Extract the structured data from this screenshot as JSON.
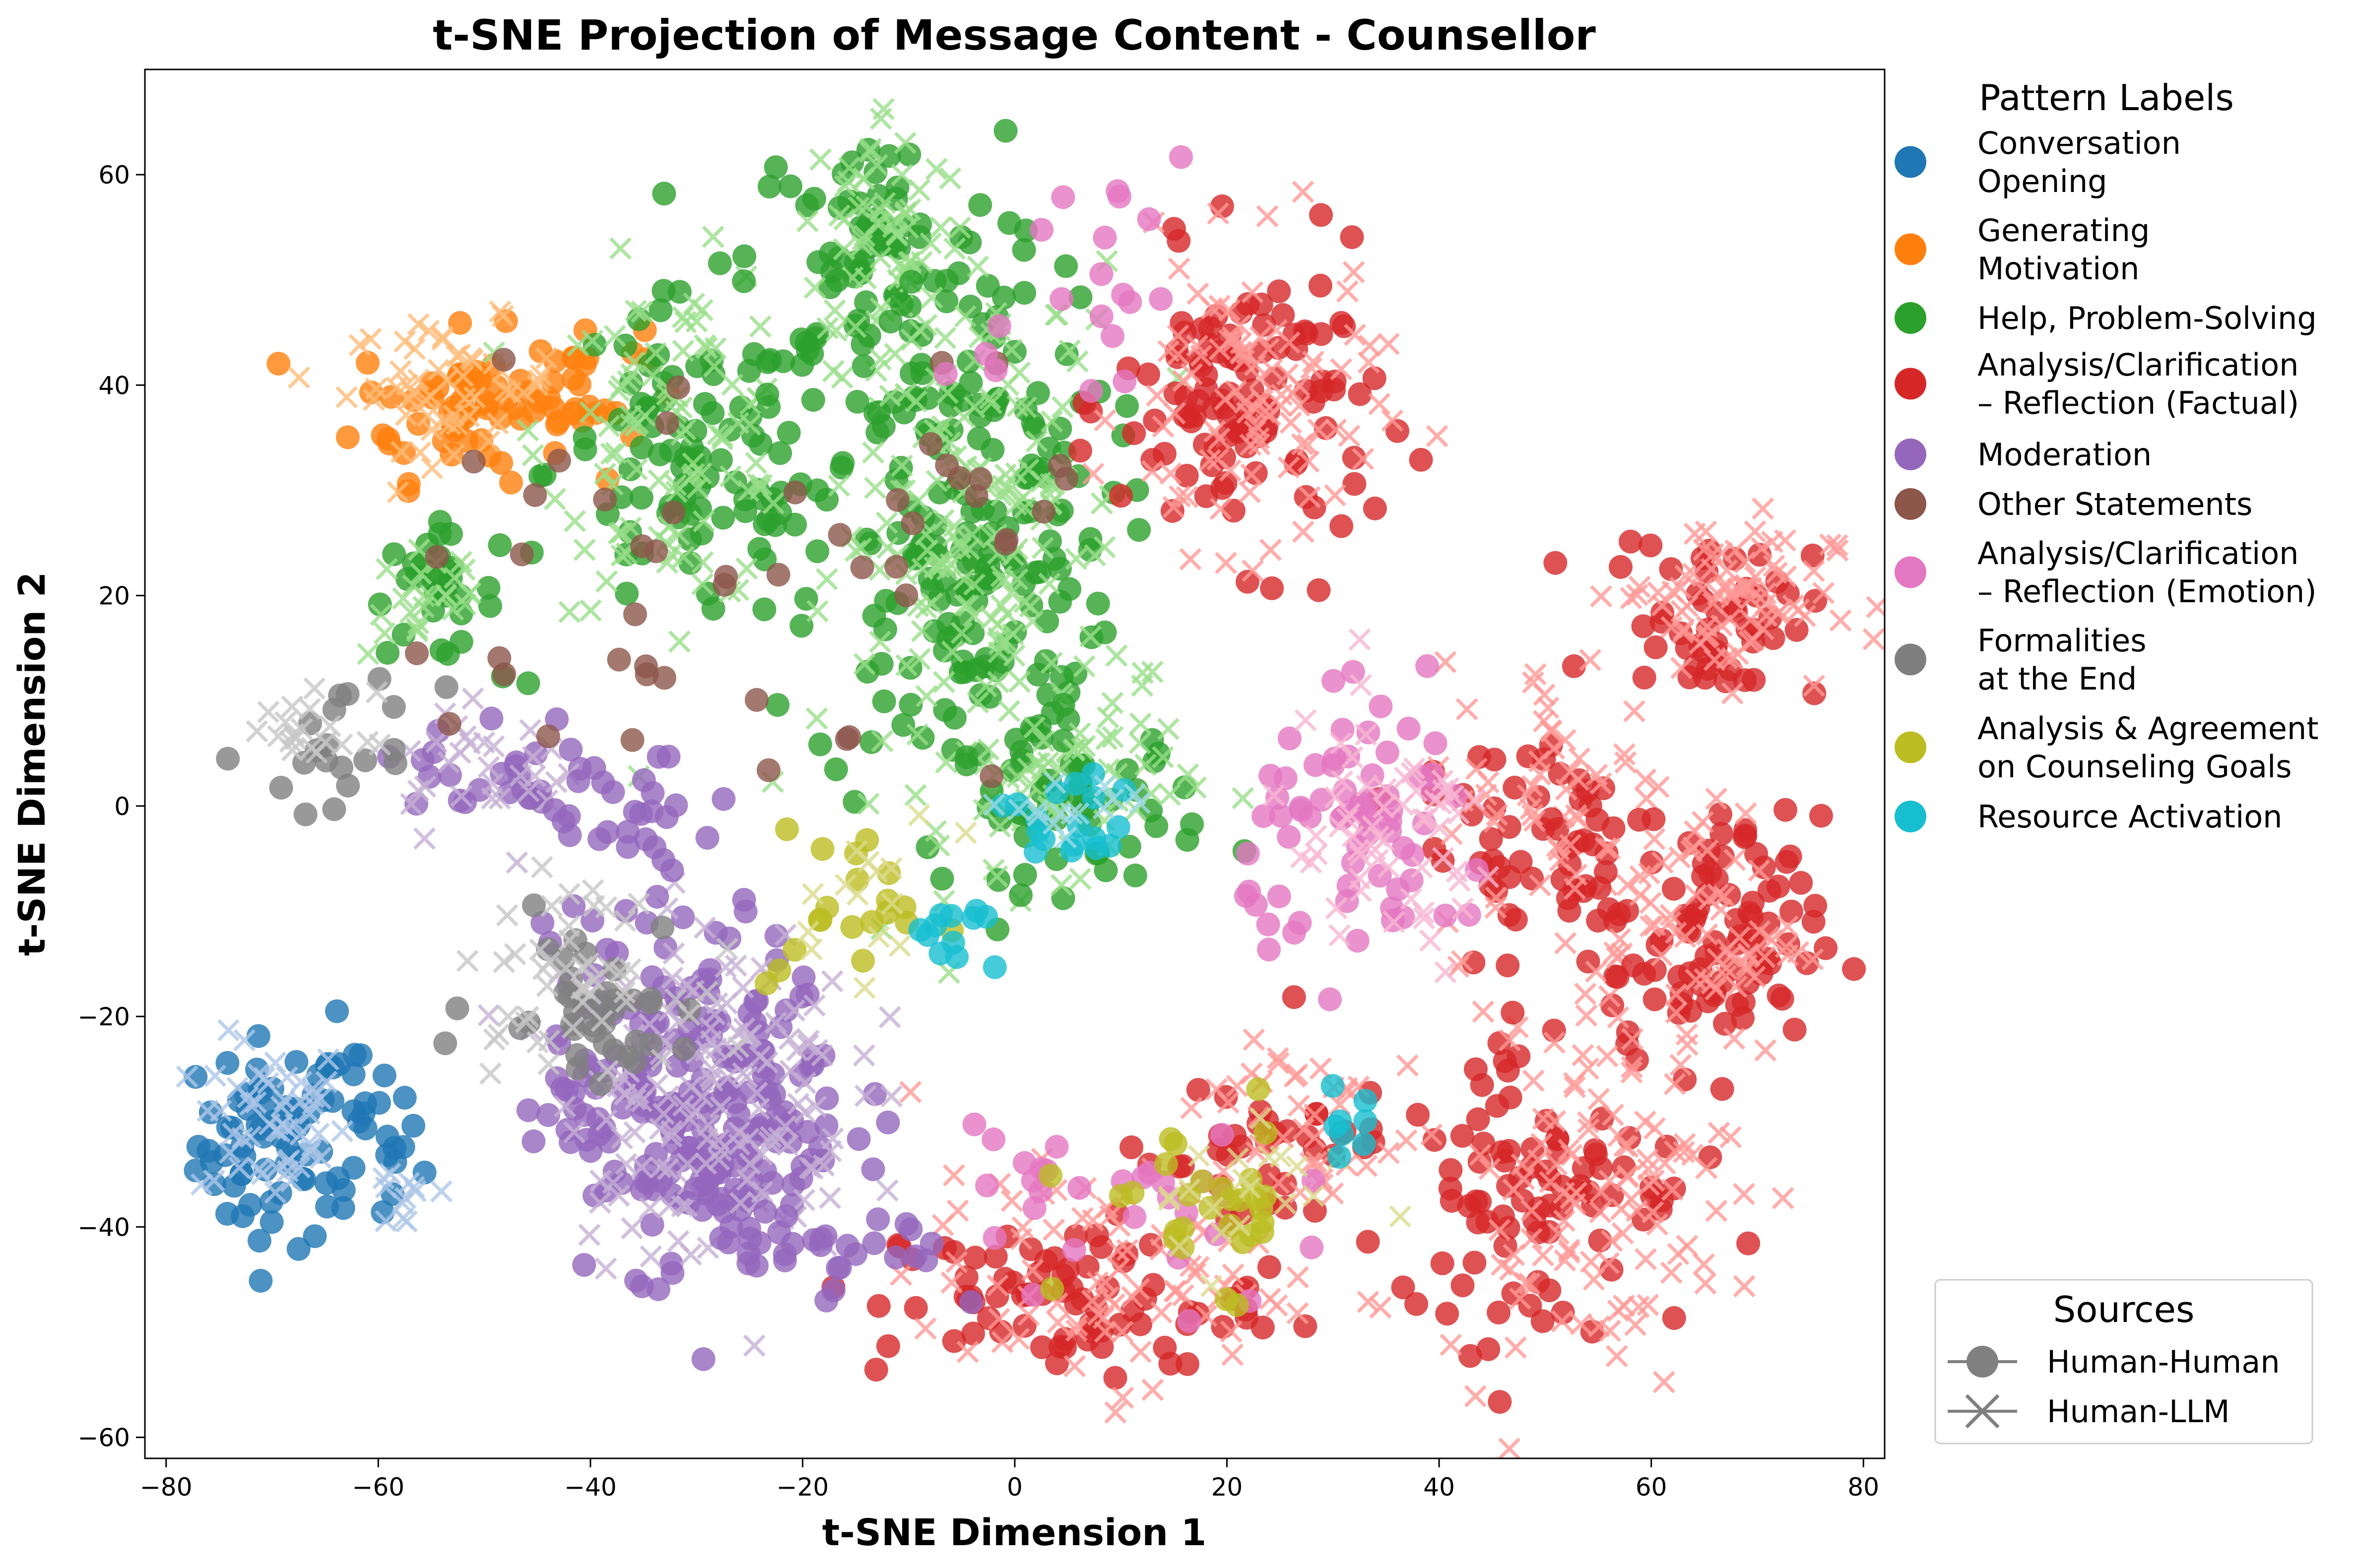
{
  "chart_data": {
    "type": "scatter",
    "title": "t-SNE Projection of Message Content - Counsellor",
    "xlabel": "t-SNE Dimension 1",
    "ylabel": "t-SNE Dimension 2",
    "xlim": [
      -82,
      82
    ],
    "ylim": [
      -62,
      70
    ],
    "xticks": [
      -80,
      -60,
      -40,
      -20,
      0,
      20,
      40,
      60,
      80
    ],
    "yticks": [
      -60,
      -40,
      -20,
      0,
      20,
      40,
      60
    ],
    "grid": false,
    "legend_labels": {
      "title": "Pattern Labels",
      "placement": "outside-right-top",
      "items": [
        {
          "label": [
            "Conversation",
            "Opening"
          ],
          "color": "#1f77b4"
        },
        {
          "label": [
            "Generating",
            "Motivation"
          ],
          "color": "#ff7f0e"
        },
        {
          "label": [
            "Help, Problem-Solving"
          ],
          "color": "#2ca02c"
        },
        {
          "label": [
            "Analysis/Clarification",
            "– Reflection (Factual)"
          ],
          "color": "#d62728"
        },
        {
          "label": [
            "Moderation"
          ],
          "color": "#9467bd"
        },
        {
          "label": [
            "Other Statements"
          ],
          "color": "#8c564b"
        },
        {
          "label": [
            "Analysis/Clarification",
            "– Reflection (Emotion)"
          ],
          "color": "#e377c2"
        },
        {
          "label": [
            "Formalities",
            "at the End"
          ],
          "color": "#7f7f7f"
        },
        {
          "label": [
            "Analysis & Agreement",
            "on Counseling Goals"
          ],
          "color": "#bcbd22"
        },
        {
          "label": [
            "Resource Activation"
          ],
          "color": "#17becf"
        }
      ]
    },
    "legend_sources": {
      "title": "Sources",
      "placement": "outside-right-bottom",
      "items": [
        {
          "label": "Human-Human",
          "marker": "circle",
          "color": "#808080"
        },
        {
          "label": "Human-LLM",
          "marker": "x",
          "color": "#808080"
        }
      ]
    },
    "clusters": [
      {
        "category": 0,
        "source": "Human-Human",
        "color": "#1f77b4",
        "center": [
          -70,
          -32
        ],
        "spread": [
          3.5,
          5
        ],
        "n": 60
      },
      {
        "category": 0,
        "source": "Human-Human",
        "color": "#1f77b4",
        "center": [
          -62,
          -32
        ],
        "spread": [
          3,
          5
        ],
        "n": 30
      },
      {
        "category": 0,
        "source": "Human-LLM",
        "color": "#aec7e8",
        "center": [
          -70,
          -30
        ],
        "spread": [
          3.5,
          4
        ],
        "n": 55
      },
      {
        "category": 0,
        "source": "Human-LLM",
        "color": "#aec7e8",
        "center": [
          -57,
          -37
        ],
        "spread": [
          2.5,
          2
        ],
        "n": 12
      },
      {
        "category": 1,
        "source": "Human-Human",
        "color": "#ff7f0e",
        "center": [
          -52,
          38
        ],
        "spread": [
          5,
          3.5
        ],
        "n": 60
      },
      {
        "category": 1,
        "source": "Human-Human",
        "color": "#ff7f0e",
        "center": [
          -41,
          40
        ],
        "spread": [
          3,
          3
        ],
        "n": 25
      },
      {
        "category": 1,
        "source": "Human-LLM",
        "color": "#ffbb78",
        "center": [
          -53,
          40
        ],
        "spread": [
          5,
          3
        ],
        "n": 55
      },
      {
        "category": 2,
        "source": "Human-Human",
        "color": "#2ca02c",
        "center": [
          -55,
          20
        ],
        "spread": [
          3,
          3
        ],
        "n": 30
      },
      {
        "category": 2,
        "source": "Human-LLM",
        "color": "#98df8a",
        "center": [
          -55,
          20
        ],
        "spread": [
          3,
          3
        ],
        "n": 25
      },
      {
        "category": 2,
        "source": "Human-Human",
        "color": "#2ca02c",
        "center": [
          -30,
          32
        ],
        "spread": [
          7,
          8
        ],
        "n": 100
      },
      {
        "category": 2,
        "source": "Human-LLM",
        "color": "#98df8a",
        "center": [
          -32,
          35
        ],
        "spread": [
          6,
          8
        ],
        "n": 100
      },
      {
        "category": 2,
        "source": "Human-Human",
        "color": "#2ca02c",
        "center": [
          -13,
          52
        ],
        "spread": [
          6,
          6
        ],
        "n": 70
      },
      {
        "category": 2,
        "source": "Human-LLM",
        "color": "#98df8a",
        "center": [
          -12,
          55
        ],
        "spread": [
          4,
          6
        ],
        "n": 60
      },
      {
        "category": 2,
        "source": "Human-Human",
        "color": "#2ca02c",
        "center": [
          -5,
          25
        ],
        "spread": [
          7,
          13
        ],
        "n": 200
      },
      {
        "category": 2,
        "source": "Human-LLM",
        "color": "#98df8a",
        "center": [
          -3,
          25
        ],
        "spread": [
          7,
          13
        ],
        "n": 200
      },
      {
        "category": 2,
        "source": "Human-Human",
        "color": "#2ca02c",
        "center": [
          6,
          0
        ],
        "spread": [
          6,
          4
        ],
        "n": 50
      },
      {
        "category": 2,
        "source": "Human-LLM",
        "color": "#98df8a",
        "center": [
          5,
          2
        ],
        "spread": [
          6,
          4
        ],
        "n": 50
      },
      {
        "category": 3,
        "source": "Human-Human",
        "color": "#d62728",
        "center": [
          22,
          38
        ],
        "spread": [
          6,
          7
        ],
        "n": 110
      },
      {
        "category": 3,
        "source": "Human-LLM",
        "color": "#ff9896",
        "center": [
          22,
          38
        ],
        "spread": [
          6,
          7
        ],
        "n": 100
      },
      {
        "category": 3,
        "source": "Human-Human",
        "color": "#d62728",
        "center": [
          66,
          18
        ],
        "spread": [
          5,
          4
        ],
        "n": 50
      },
      {
        "category": 3,
        "source": "Human-LLM",
        "color": "#ff9896",
        "center": [
          67,
          20
        ],
        "spread": [
          5,
          4
        ],
        "n": 80
      },
      {
        "category": 3,
        "source": "Human-Human",
        "color": "#d62728",
        "center": [
          66,
          -13
        ],
        "spread": [
          5,
          6
        ],
        "n": 90
      },
      {
        "category": 3,
        "source": "Human-LLM",
        "color": "#ff9896",
        "center": [
          64,
          -12
        ],
        "spread": [
          5,
          6
        ],
        "n": 70
      },
      {
        "category": 3,
        "source": "Human-Human",
        "color": "#d62728",
        "center": [
          50,
          -3
        ],
        "spread": [
          6,
          7
        ],
        "n": 60
      },
      {
        "category": 3,
        "source": "Human-LLM",
        "color": "#ff9896",
        "center": [
          52,
          0
        ],
        "spread": [
          6,
          7
        ],
        "n": 60
      },
      {
        "category": 3,
        "source": "Human-Human",
        "color": "#d62728",
        "center": [
          50,
          -35
        ],
        "spread": [
          7,
          8
        ],
        "n": 90
      },
      {
        "category": 3,
        "source": "Human-LLM",
        "color": "#ff9896",
        "center": [
          54,
          -37
        ],
        "spread": [
          7,
          8
        ],
        "n": 110
      },
      {
        "category": 3,
        "source": "Human-Human",
        "color": "#d62728",
        "center": [
          5,
          -47
        ],
        "spread": [
          9,
          4
        ],
        "n": 80
      },
      {
        "category": 3,
        "source": "Human-LLM",
        "color": "#ff9896",
        "center": [
          8,
          -45
        ],
        "spread": [
          9,
          5
        ],
        "n": 80
      },
      {
        "category": 3,
        "source": "Human-Human",
        "color": "#d62728",
        "center": [
          23,
          -33
        ],
        "spread": [
          6,
          5
        ],
        "n": 40
      },
      {
        "category": 3,
        "source": "Human-LLM",
        "color": "#ff9896",
        "center": [
          25,
          -30
        ],
        "spread": [
          6,
          5
        ],
        "n": 40
      },
      {
        "category": 4,
        "source": "Human-Human",
        "color": "#9467bd",
        "center": [
          -30,
          -28
        ],
        "spread": [
          7,
          8
        ],
        "n": 230
      },
      {
        "category": 4,
        "source": "Human-LLM",
        "color": "#c5b0d5",
        "center": [
          -29,
          -27
        ],
        "spread": [
          7,
          8
        ],
        "n": 150
      },
      {
        "category": 4,
        "source": "Human-Human",
        "color": "#9467bd",
        "center": [
          -47,
          3
        ],
        "spread": [
          5,
          3
        ],
        "n": 30
      },
      {
        "category": 4,
        "source": "Human-LLM",
        "color": "#c5b0d5",
        "center": [
          -50,
          4
        ],
        "spread": [
          5,
          3
        ],
        "n": 30
      },
      {
        "category": 4,
        "source": "Human-Human",
        "color": "#9467bd",
        "center": [
          -36,
          -3
        ],
        "spread": [
          4,
          4
        ],
        "n": 25
      },
      {
        "category": 4,
        "source": "Human-Human",
        "color": "#9467bd",
        "center": [
          -18,
          -43
        ],
        "spread": [
          6,
          3
        ],
        "n": 30
      },
      {
        "category": 5,
        "source": "Human-Human",
        "color": "#8c564b",
        "center": [
          -38,
          20
        ],
        "spread": [
          10,
          12
        ],
        "n": 30
      },
      {
        "category": 5,
        "source": "Human-Human",
        "color": "#8c564b",
        "center": [
          -5,
          30
        ],
        "spread": [
          8,
          10
        ],
        "n": 20
      },
      {
        "category": 6,
        "source": "Human-Human",
        "color": "#e377c2",
        "center": [
          34,
          -3
        ],
        "spread": [
          6,
          6
        ],
        "n": 70
      },
      {
        "category": 6,
        "source": "Human-LLM",
        "color": "#f7b6d2",
        "center": [
          35,
          -4
        ],
        "spread": [
          6,
          6
        ],
        "n": 60
      },
      {
        "category": 6,
        "source": "Human-Human",
        "color": "#e377c2",
        "center": [
          10,
          -38
        ],
        "spread": [
          8,
          6
        ],
        "n": 30
      },
      {
        "category": 6,
        "source": "Human-Human",
        "color": "#e377c2",
        "center": [
          5,
          50
        ],
        "spread": [
          8,
          6
        ],
        "n": 20
      },
      {
        "category": 7,
        "source": "Human-Human",
        "color": "#7f7f7f",
        "center": [
          -40,
          -18
        ],
        "spread": [
          5,
          4
        ],
        "n": 40
      },
      {
        "category": 7,
        "source": "Human-LLM",
        "color": "#c7c7c7",
        "center": [
          -42,
          -16
        ],
        "spread": [
          5,
          4
        ],
        "n": 50
      },
      {
        "category": 7,
        "source": "Human-Human",
        "color": "#7f7f7f",
        "center": [
          -63,
          5
        ],
        "spread": [
          4,
          3
        ],
        "n": 20
      },
      {
        "category": 7,
        "source": "Human-LLM",
        "color": "#c7c7c7",
        "center": [
          -66,
          7
        ],
        "spread": [
          3,
          2
        ],
        "n": 20
      },
      {
        "category": 8,
        "source": "Human-Human",
        "color": "#bcbd22",
        "center": [
          -15,
          -10
        ],
        "spread": [
          4,
          4
        ],
        "n": 20
      },
      {
        "category": 8,
        "source": "Human-LLM",
        "color": "#dbdb8d",
        "center": [
          -14,
          -8
        ],
        "spread": [
          4,
          4
        ],
        "n": 15
      },
      {
        "category": 8,
        "source": "Human-Human",
        "color": "#bcbd22",
        "center": [
          18,
          -38
        ],
        "spread": [
          6,
          4
        ],
        "n": 30
      },
      {
        "category": 8,
        "source": "Human-LLM",
        "color": "#dbdb8d",
        "center": [
          20,
          -36
        ],
        "spread": [
          6,
          4
        ],
        "n": 20
      },
      {
        "category": 9,
        "source": "Human-Human",
        "color": "#17becf",
        "center": [
          -5,
          -13
        ],
        "spread": [
          3,
          2
        ],
        "n": 12
      },
      {
        "category": 9,
        "source": "Human-Human",
        "color": "#17becf",
        "center": [
          5,
          -2
        ],
        "spread": [
          3,
          2.5
        ],
        "n": 18
      },
      {
        "category": 9,
        "source": "Human-LLM",
        "color": "#9edae5",
        "center": [
          5,
          -1
        ],
        "spread": [
          3,
          2.5
        ],
        "n": 15
      },
      {
        "category": 9,
        "source": "Human-Human",
        "color": "#17becf",
        "center": [
          32,
          -30
        ],
        "spread": [
          3,
          2
        ],
        "n": 8
      }
    ]
  }
}
